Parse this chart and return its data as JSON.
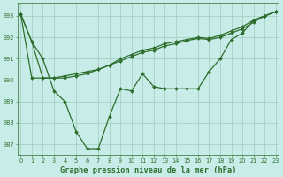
{
  "xlabel": "Graphe pression niveau de la mer (hPa)",
  "bg_color": "#c8ece8",
  "grid_color": "#a0ccbb",
  "line_color": "#2d6e2d",
  "ylim": [
    986.5,
    993.6
  ],
  "xlim": [
    -0.3,
    23.3
  ],
  "yticks": [
    987,
    988,
    989,
    990,
    991,
    992,
    993
  ],
  "xticks": [
    0,
    1,
    2,
    3,
    4,
    5,
    6,
    7,
    8,
    9,
    10,
    11,
    12,
    13,
    14,
    15,
    16,
    17,
    18,
    19,
    20,
    21,
    22,
    23
  ],
  "line1_x": [
    0,
    1,
    2,
    3,
    4,
    5,
    6,
    7,
    8,
    9,
    10,
    11,
    12,
    13,
    14,
    15,
    16,
    17,
    18,
    19,
    20,
    21,
    22,
    23
  ],
  "line1_y": [
    993.1,
    991.8,
    991.0,
    989.5,
    989.0,
    987.6,
    986.8,
    986.8,
    988.3,
    989.6,
    989.5,
    990.3,
    989.7,
    989.6,
    989.6,
    989.6,
    989.6,
    990.4,
    991.0,
    991.9,
    992.2,
    992.8,
    993.0,
    993.2
  ],
  "line2_x": [
    0,
    1,
    2,
    3,
    4,
    5,
    6,
    7,
    8,
    9,
    10,
    11,
    12,
    13,
    14,
    15,
    16,
    17,
    18,
    19,
    20,
    21,
    22,
    23
  ],
  "line2_y": [
    993.1,
    991.8,
    990.1,
    990.1,
    990.2,
    990.3,
    990.4,
    990.5,
    990.7,
    990.9,
    991.1,
    991.3,
    991.4,
    991.6,
    991.7,
    991.85,
    991.95,
    991.9,
    992.0,
    992.2,
    992.4,
    992.7,
    993.0,
    993.2
  ],
  "line3_x": [
    0,
    1,
    2,
    3,
    4,
    5,
    6,
    7,
    8,
    9,
    10,
    11,
    12,
    13,
    14,
    15,
    16,
    17,
    18,
    19,
    20,
    21,
    22,
    23
  ],
  "line3_y": [
    993.1,
    990.1,
    990.1,
    990.1,
    990.1,
    990.2,
    990.3,
    990.5,
    990.7,
    991.0,
    991.2,
    991.4,
    991.5,
    991.7,
    991.8,
    991.9,
    992.0,
    991.95,
    992.1,
    992.3,
    992.5,
    992.8,
    993.0,
    993.2
  ],
  "marker_size": 2.0,
  "line_width": 0.9,
  "font_color": "#2d6e2d",
  "tick_fontsize": 4.8,
  "xlabel_fontsize": 6.2
}
